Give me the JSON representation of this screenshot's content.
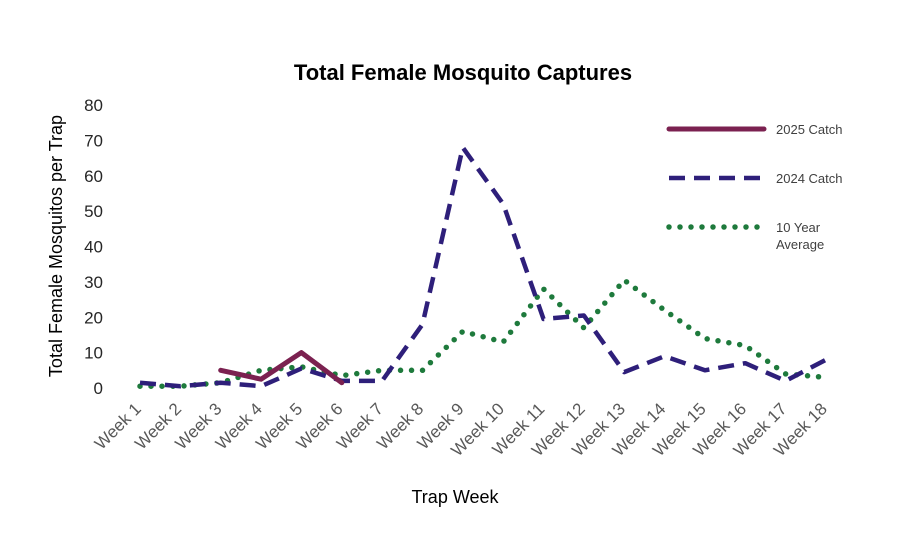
{
  "chart_data": {
    "type": "line",
    "title": "Total Female Mosquito Captures",
    "xlabel": "Trap Week",
    "ylabel": "Total Female Mosquitos per Trap",
    "ylim": [
      0,
      80
    ],
    "yticks": [
      0,
      10,
      20,
      30,
      40,
      50,
      60,
      70,
      80
    ],
    "grid": false,
    "legend_position": "right",
    "categories": [
      "Week 1",
      "Week 2",
      "Week 3",
      "Week 4",
      "Week 5",
      "Week 6",
      "Week 7",
      "Week 8",
      "Week 9",
      "Week 10",
      "Week 11",
      "Week 12",
      "Week 13",
      "Week 14",
      "Week 15",
      "Week 16",
      "Week 17",
      "Week 18"
    ],
    "series": [
      {
        "name": "2025 Catch",
        "color": "#7B2150",
        "style": "solid",
        "values": [
          null,
          null,
          5,
          2.5,
          10,
          1.5,
          null,
          null,
          null,
          null,
          null,
          null,
          null,
          null,
          null,
          null,
          null,
          null
        ]
      },
      {
        "name": "2024 Catch",
        "color": "#2E1F7A",
        "style": "dashed",
        "values": [
          1.5,
          0.5,
          1.5,
          0.5,
          5.5,
          2,
          2,
          18,
          68,
          52,
          19.5,
          20.5,
          4.5,
          9,
          5,
          7,
          2,
          8
        ]
      },
      {
        "name": "10 Year Average",
        "color": "#1E7A3C",
        "style": "dotted",
        "values": [
          0.5,
          0.5,
          1.5,
          5,
          6,
          3.5,
          5,
          5,
          16,
          13,
          28,
          17,
          30.5,
          22,
          14,
          12,
          4,
          3
        ]
      }
    ]
  }
}
